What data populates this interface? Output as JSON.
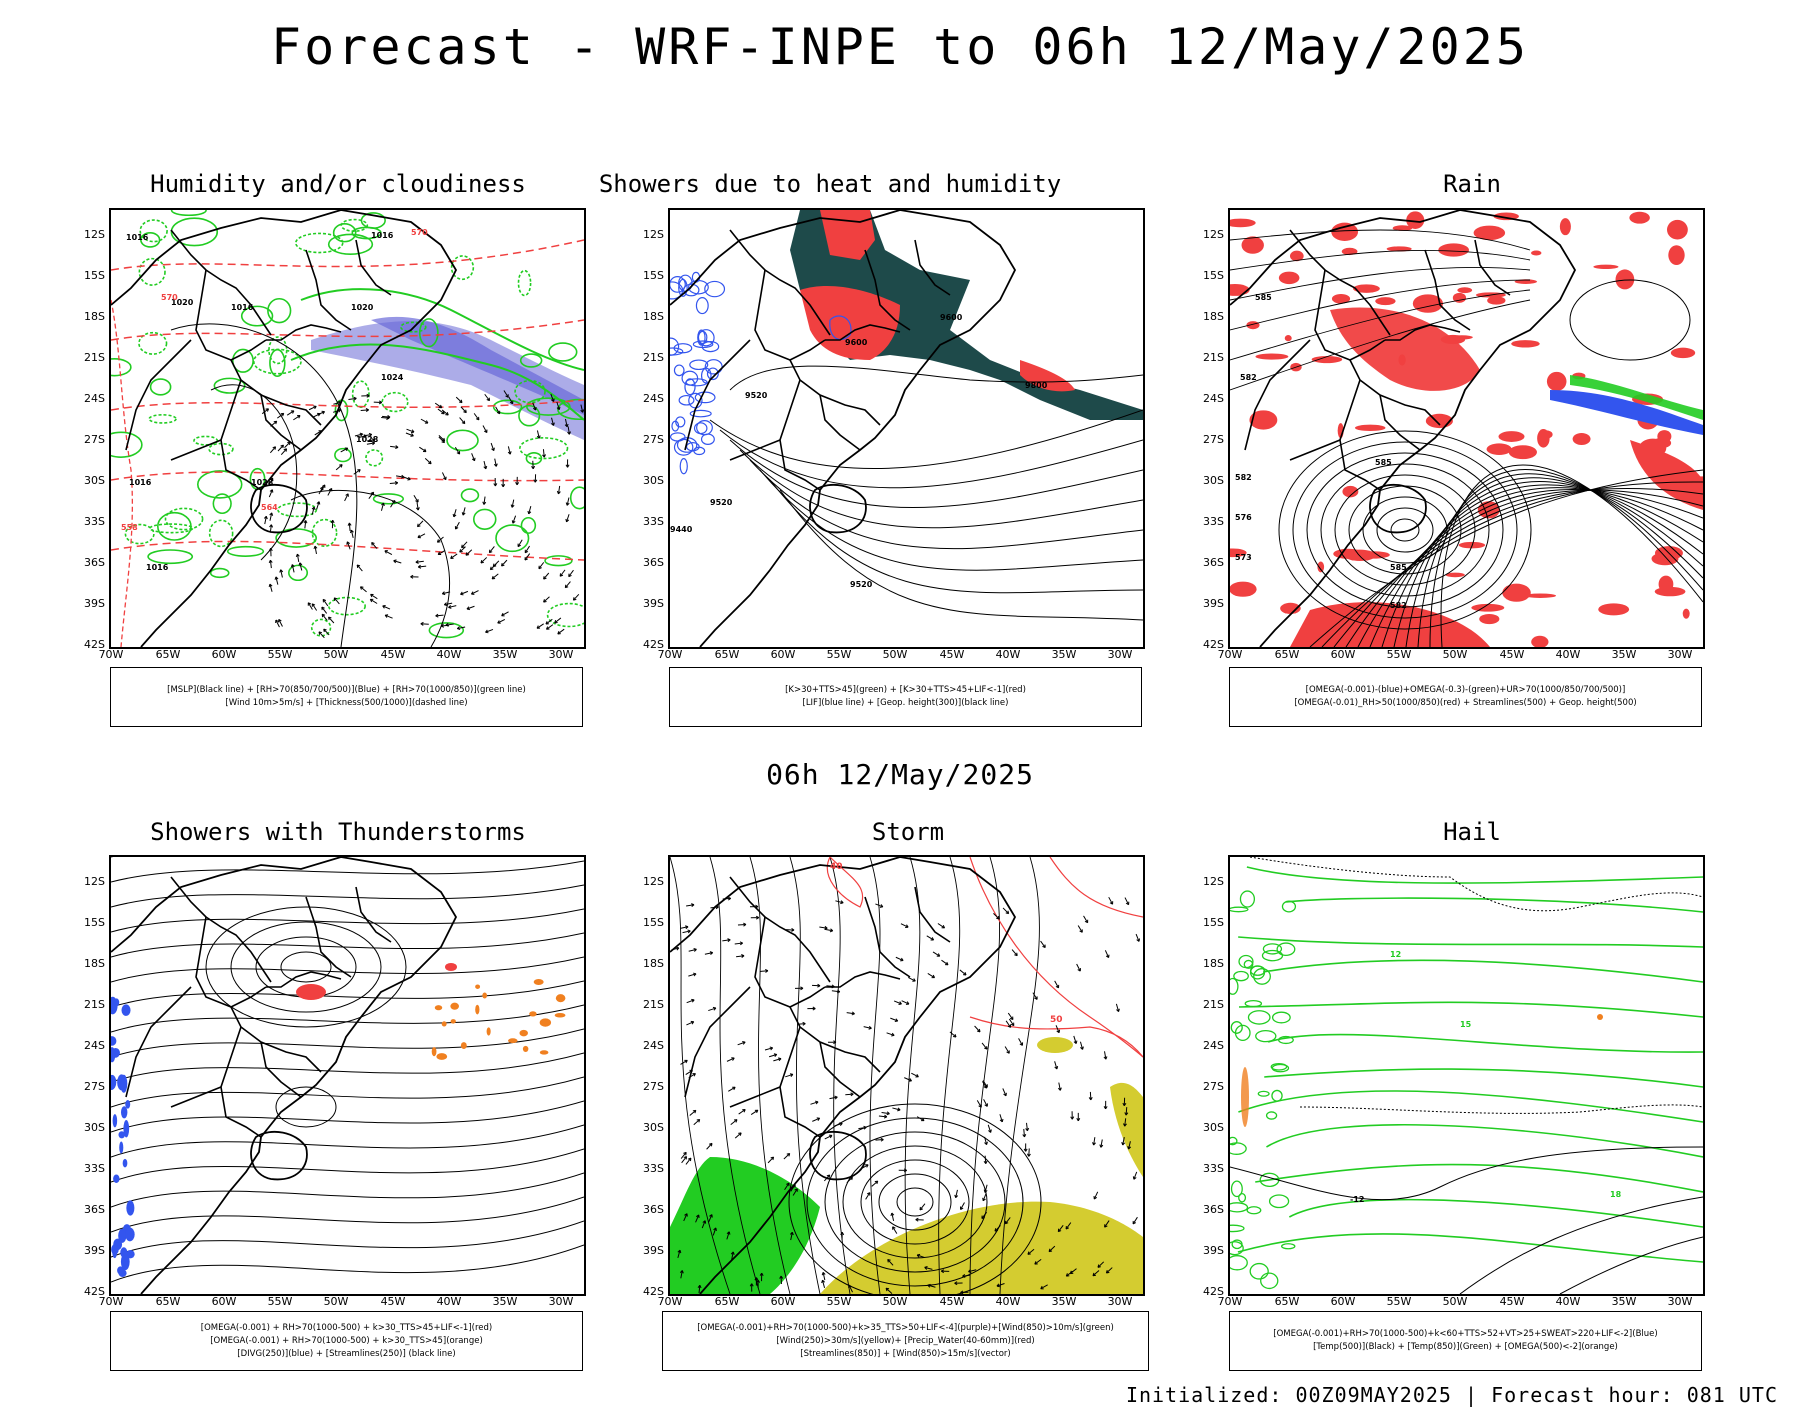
{
  "header": {
    "title": "Forecast - WRF-INPE to 06h 12/May/2025",
    "subtitle": "06h 12/May/2025"
  },
  "panels": [
    {
      "title": "Humidity and/or cloudiness",
      "legend": [
        "[MSLP](Black line) + [RH>70(850/700/500)](Blue) + [RH>70(1000/850)](green line)",
        "[Wind 10m>5m/s] + [Thickness(500/1000)](dashed line)"
      ]
    },
    {
      "title": "Showers due to heat and humidity",
      "legend": [
        "[K>30+TTS>45](green) + [K>30+TTS>45+LIF<-1](red)",
        "[LIF](blue line) + [Geop. height(300)](black line)"
      ]
    },
    {
      "title": "Rain",
      "legend": [
        "[OMEGA(-0.001)-(blue)+OMEGA(-0.3)-(green)+UR>70(1000/850/700/500)]",
        "[OMEGA(-0.01)_RH>50(1000/850)(red) + Streamlines(500) + Geop. height(500)"
      ]
    },
    {
      "title": "Showers with Thunderstorms",
      "legend": [
        "[OMEGA(-0.001) + RH>70(1000-500) + k>30_TTS>45+LIF<-1](red)",
        "[OMEGA(-0.001) + RH>70(1000-500) + k>30_TTS>45](orange)",
        "[DIVG(250)](blue) + [Streamlines(250)] (black line)"
      ]
    },
    {
      "title": "Storm",
      "legend": [
        "[OMEGA(-0.001)+RH>70(1000-500)+k>35_TTS>50+LIF<-4](purple)+[Wind(850)>10m/s](green)",
        "[Wind(250)>30m/s](yellow)+ [Precip_Water(40-60mm)](red)",
        "[Streamlines(850)] + [Wind(850)>15m/s](vector)"
      ]
    },
    {
      "title": "Hail",
      "legend": [
        "[OMEGA(-0.001)+RH>70(1000-500)+k<60+TTS>52+VT>25+SWEAT>220+LIF<-2](Blue)",
        "[Temp(500)](Black) + [Temp(850)](Green) + [OMEGA(500)<-2](orange)"
      ]
    }
  ],
  "axes": {
    "lat_labels": [
      "12S",
      "15S",
      "18S",
      "21S",
      "24S",
      "27S",
      "30S",
      "33S",
      "36S",
      "39S",
      "42S"
    ],
    "lon_labels": [
      "70W",
      "65W",
      "60W",
      "55W",
      "50W",
      "45W",
      "40W",
      "35W",
      "30W"
    ]
  },
  "contour_labels": {
    "p1": [
      "1016",
      "1016",
      "1020",
      "1020",
      "1016",
      "1024",
      "1028",
      "1016",
      "1028",
      "1016",
      "570",
      "570",
      "564",
      "558"
    ],
    "p2": [
      "9600",
      "9600",
      "9520",
      "9520",
      "9440",
      "9800",
      "9520"
    ],
    "p3": [
      "585",
      "585",
      "582",
      "576",
      "573",
      "585",
      "582",
      "582"
    ],
    "p5": [
      "40",
      "50"
    ],
    "p6": [
      "12",
      "15",
      "18",
      "-12"
    ]
  },
  "footer": {
    "text": "Initialized: 00Z09MAY2025 | Forecast hour: 081 UTC"
  },
  "colors": {
    "red": "#f04040",
    "green": "#22cc22",
    "blue": "#3355ee",
    "dark_teal": "#1e4a4a",
    "yellow": "#d4cc30",
    "orange": "#f08020",
    "lavender": "#9090e0"
  }
}
